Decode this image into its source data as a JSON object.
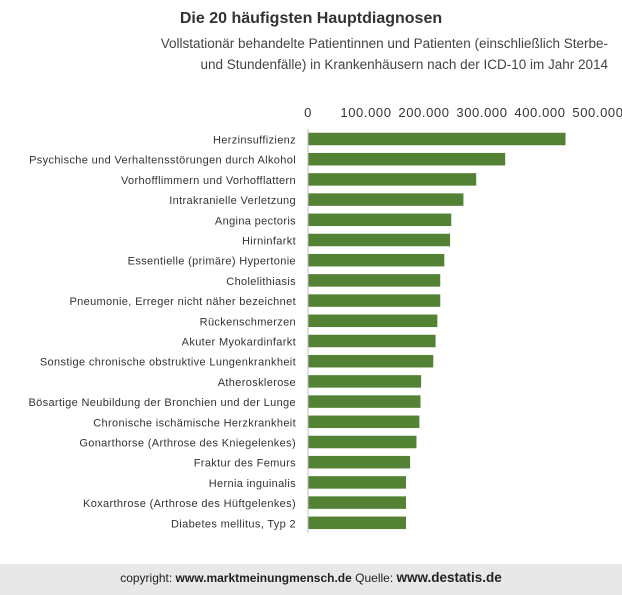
{
  "chart_data": {
    "type": "bar",
    "orientation": "horizontal",
    "title": "Die 20 häufigsten Hauptdiagnosen",
    "subtitle_lines": [
      "Vollstationär behandelte Patientinnen und Patienten (einschließlich Sterbe-",
      "und Stundenfälle) in Krankenhäusern  nach der ICD-10 im Jahr 2014"
    ],
    "xlim": [
      0,
      500000
    ],
    "xticks": [
      "0",
      "100.000",
      "200.000",
      "300.000",
      "400.000",
      "500.000"
    ],
    "xtick_values": [
      0,
      100000,
      200000,
      300000,
      400000,
      500000
    ],
    "x_axis_position": "top",
    "bar_color": "#548235",
    "grid": false,
    "categories": [
      "Herzinsuffizienz",
      "Psychische und Verhaltensstörungen durch Alkohol",
      "Vorhofflimmern und Vorhofflattern",
      "Intrakranielle Verletzung",
      "Angina pectoris",
      "Hirninfarkt",
      "Essentielle (primäre) Hypertonie",
      "Cholelithiasis",
      "Pneumonie, Erreger nicht näher bezeichnet",
      "Rückenschmerzen",
      "Akuter Myokardinfarkt",
      "Sonstige chronische obstruktive Lungenkrankheit",
      "Atherosklerose",
      "Bösartige Neubildung der Bronchien und der Lunge",
      "Chronische ischämische Herzkrankheit",
      "Gonarthorse (Arthrose des Kniegelenkes)",
      "Fraktur des Femurs",
      "Hernia inguinalis",
      "Koxarthrose (Arthrose des Hüftgelenkes)",
      "Diabetes mellitus, Typ 2"
    ],
    "values": [
      444000,
      340000,
      290000,
      268000,
      247000,
      245000,
      235000,
      228000,
      228000,
      223000,
      220000,
      216000,
      195000,
      194000,
      192000,
      187000,
      176000,
      169000,
      169000,
      169000
    ]
  },
  "footer": {
    "copyright_label": "copyright: ",
    "copyright_site": "www.marktmeinungmensch.de",
    "source_label": "  Quelle: ",
    "source_site": "www.destatis.de"
  }
}
